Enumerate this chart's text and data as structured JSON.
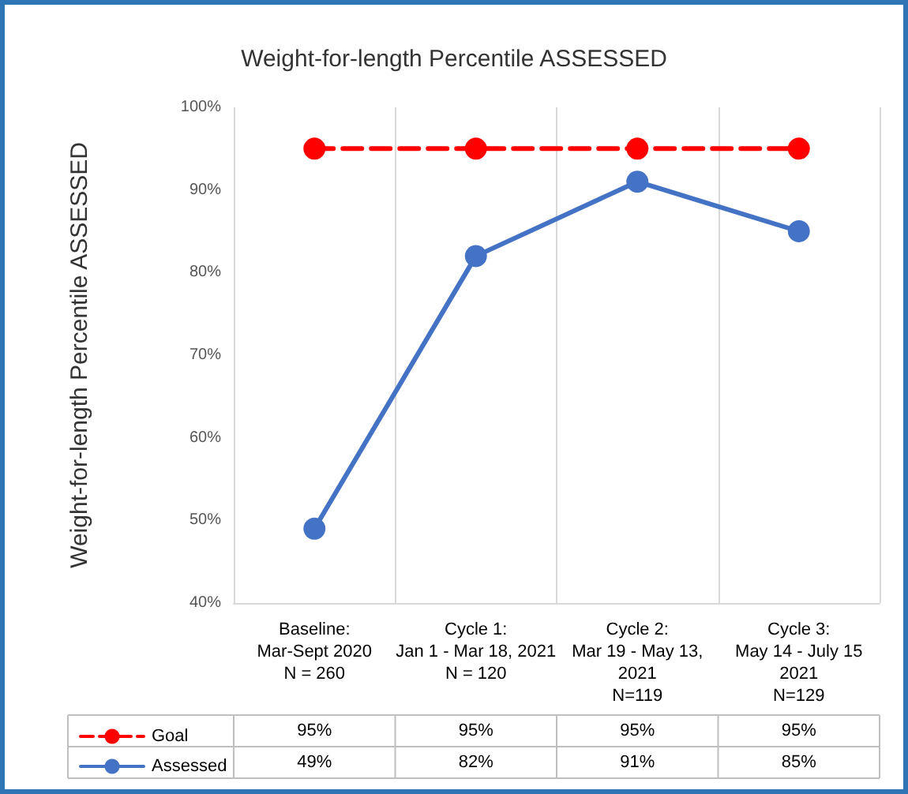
{
  "chart_data": {
    "type": "line",
    "title": "Weight-for-length Percentile ASSESSED",
    "ylabel": "Weight-for-length Percentile ASSESSED",
    "categories": [
      "Baseline:\nMar-Sept 2020\nN = 260",
      "Cycle 1:\nJan 1 - Mar 18, 2021\nN = 120",
      "Cycle 2:\nMar 19 - May 13,\n2021\nN=119",
      "Cycle 3:\nMay 14 - July 15\n2021\nN=129"
    ],
    "series": [
      {
        "name": "Goal",
        "color": "#ff0000",
        "line_style": "dashed",
        "values": [
          95,
          95,
          95,
          95
        ],
        "value_labels": [
          "95%",
          "95%",
          "95%",
          "95%"
        ]
      },
      {
        "name": "Assessed",
        "color": "#4472c4",
        "line_style": "solid",
        "values": [
          49,
          82,
          91,
          85
        ],
        "value_labels": [
          "49%",
          "82%",
          "91%",
          "85%"
        ]
      }
    ],
    "ylim": [
      40,
      100
    ],
    "yticks": [
      {
        "value": 40,
        "label": "40%"
      },
      {
        "value": 50,
        "label": "50%"
      },
      {
        "value": 60,
        "label": "60%"
      },
      {
        "value": 70,
        "label": "70%"
      },
      {
        "value": 80,
        "label": "80%"
      },
      {
        "value": 90,
        "label": "90%"
      },
      {
        "value": 100,
        "label": "100%"
      }
    ],
    "grid": "x",
    "legend": "bottom left",
    "marker": "circle"
  }
}
